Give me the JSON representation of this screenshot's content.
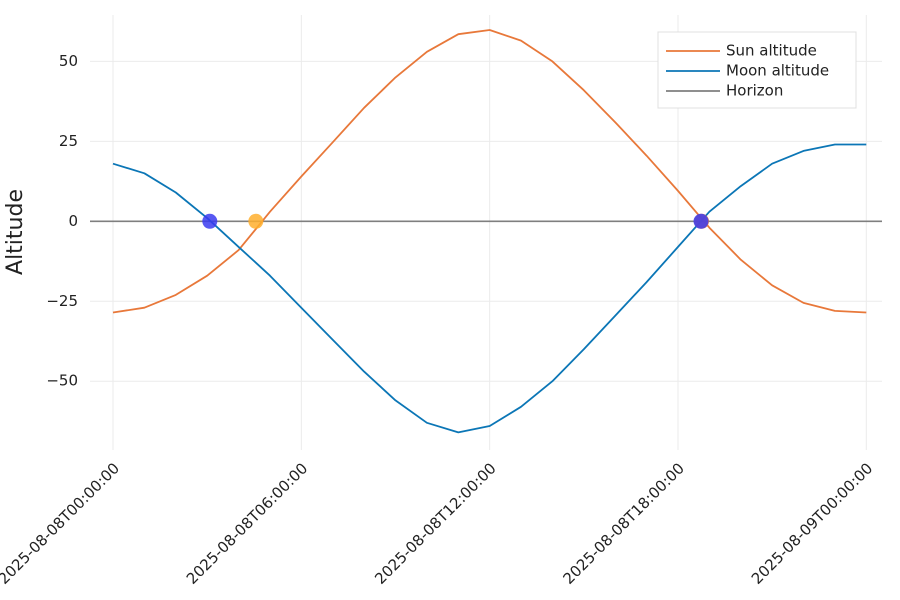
{
  "chart_data": {
    "type": "line",
    "ylabel": "Altitude",
    "x": [
      "2025-08-08T00:00:00",
      "2025-08-08T01:00:00",
      "2025-08-08T02:00:00",
      "2025-08-08T03:00:00",
      "2025-08-08T04:00:00",
      "2025-08-08T05:00:00",
      "2025-08-08T06:00:00",
      "2025-08-08T07:00:00",
      "2025-08-08T08:00:00",
      "2025-08-08T09:00:00",
      "2025-08-08T10:00:00",
      "2025-08-08T11:00:00",
      "2025-08-08T12:00:00",
      "2025-08-08T13:00:00",
      "2025-08-08T14:00:00",
      "2025-08-08T15:00:00",
      "2025-08-08T16:00:00",
      "2025-08-08T17:00:00",
      "2025-08-08T18:00:00",
      "2025-08-08T19:00:00",
      "2025-08-08T20:00:00",
      "2025-08-08T21:00:00",
      "2025-08-08T22:00:00",
      "2025-08-08T23:00:00",
      "2025-08-09T00:00:00"
    ],
    "series": [
      {
        "name": "Sun altitude",
        "color": "#e8783a",
        "values": [
          -28.5,
          -27,
          -23,
          -17,
          -9,
          3,
          14,
          24.7,
          35.5,
          45,
          53,
          58.5,
          59.8,
          56.5,
          50,
          41,
          31,
          20.5,
          9.5,
          -2,
          -12,
          -20,
          -25.5,
          -28,
          -28.5
        ]
      },
      {
        "name": "Moon altitude",
        "color": "#0b76b6",
        "values": [
          18,
          15,
          9,
          1,
          -8,
          -17,
          -27,
          -37,
          -47,
          -56,
          -63,
          -66,
          -64,
          -58,
          -50,
          -40,
          -29.5,
          -19,
          -8,
          3,
          11,
          18,
          22,
          24,
          24
        ]
      }
    ],
    "hline": {
      "name": "Horizon",
      "color": "#7f7f7f",
      "value": 0
    },
    "events": [
      {
        "x": "2025-08-08T04:33:00",
        "y": 0,
        "color": "#ffaf2e"
      },
      {
        "x": "2025-08-08T18:45:00",
        "y": 0,
        "color": "#e8783a"
      },
      {
        "x": "2025-08-08T03:05:00",
        "y": 0,
        "color": "#3b3bf0"
      },
      {
        "x": "2025-08-08T18:44:00",
        "y": 0,
        "color": "#3b3bf0"
      }
    ],
    "xlim": [
      "2025-08-07T23:16:00",
      "2025-08-09T00:30:00"
    ],
    "xticks": [
      "2025-08-08T00:00:00",
      "2025-08-08T06:00:00",
      "2025-08-08T12:00:00",
      "2025-08-08T18:00:00",
      "2025-08-09T00:00:00"
    ],
    "ylim": [
      -71.5,
      64.5
    ],
    "yticks": [
      {
        "value": -50,
        "label": "−50"
      },
      {
        "value": -25,
        "label": "−25"
      },
      0,
      25,
      50
    ],
    "grid": true,
    "legend": "top-right"
  }
}
